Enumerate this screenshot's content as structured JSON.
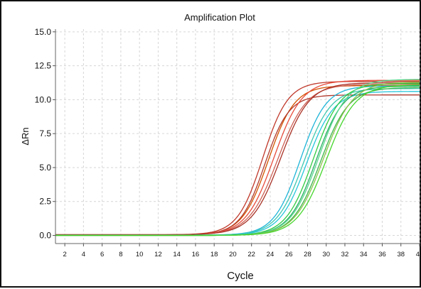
{
  "chart_data": {
    "type": "line",
    "title": "Amplification Plot",
    "xlabel": "Cycle",
    "ylabel": "ΔRn",
    "xlim": [
      1,
      40
    ],
    "ylim": [
      -0.6,
      15.2
    ],
    "x_ticks": [
      2,
      4,
      6,
      8,
      10,
      12,
      14,
      16,
      18,
      20,
      22,
      24,
      26,
      28,
      30,
      32,
      34,
      36,
      38,
      40
    ],
    "x_tick_labels": [
      "2",
      "4",
      "6",
      "8",
      "10",
      "12",
      "14",
      "16",
      "18",
      "20",
      "22",
      "24",
      "26",
      "28",
      "30",
      "32",
      "34",
      "36",
      "38",
      "40"
    ],
    "y_ticks": [
      0.0,
      2.5,
      5.0,
      7.5,
      10.0,
      12.5,
      15.0
    ],
    "y_tick_labels": [
      "0.0",
      "2.5",
      "5.0",
      "7.5",
      "10.0",
      "12.5",
      "15.0"
    ],
    "grid": true,
    "legend": "none",
    "curve_model": "sigmoid: base + plateau / (1 + exp(-(cycle - midpoint) / slope))",
    "series": [
      {
        "group": "red",
        "color": "#c0392b",
        "base": 0.05,
        "plateau": 11.3,
        "midpoint": 23.2,
        "slope": 1.35
      },
      {
        "group": "red",
        "color": "#d35400",
        "base": 0.04,
        "plateau": 11.0,
        "midpoint": 23.8,
        "slope": 1.4
      },
      {
        "group": "red",
        "color": "#b03a2e",
        "base": 0.05,
        "plateau": 10.3,
        "midpoint": 23.4,
        "slope": 1.3
      },
      {
        "group": "red",
        "color": "#e74c3c",
        "base": 0.03,
        "plateau": 11.4,
        "midpoint": 24.4,
        "slope": 1.5
      },
      {
        "group": "red",
        "color": "#cd6155",
        "base": 0.04,
        "plateau": 11.1,
        "midpoint": 24.8,
        "slope": 1.55
      },
      {
        "group": "red",
        "color": "#a93226",
        "base": 0.05,
        "plateau": 11.2,
        "midpoint": 25.1,
        "slope": 1.55
      },
      {
        "group": "cyan",
        "color": "#1fb5d8",
        "base": 0.02,
        "plateau": 11.0,
        "midpoint": 27.2,
        "slope": 1.4
      },
      {
        "group": "cyan",
        "color": "#3fc7b0",
        "base": 0.02,
        "plateau": 10.8,
        "midpoint": 27.6,
        "slope": 1.45
      },
      {
        "group": "cyan",
        "color": "#26c6da",
        "base": 0.01,
        "plateau": 10.6,
        "midpoint": 27.9,
        "slope": 1.45
      },
      {
        "group": "green",
        "color": "#2ecc40",
        "base": 0.0,
        "plateau": 11.2,
        "midpoint": 28.6,
        "slope": 1.45
      },
      {
        "group": "green",
        "color": "#27ae60",
        "base": 0.0,
        "plateau": 11.0,
        "midpoint": 28.9,
        "slope": 1.45
      },
      {
        "group": "green",
        "color": "#58d68d",
        "base": 0.0,
        "plateau": 11.5,
        "midpoint": 29.2,
        "slope": 1.5
      },
      {
        "group": "green",
        "color": "#3bb54a",
        "base": 0.0,
        "plateau": 10.9,
        "midpoint": 29.4,
        "slope": 1.5
      },
      {
        "group": "green",
        "color": "#8bc34a",
        "base": 0.0,
        "plateau": 11.3,
        "midpoint": 29.7,
        "slope": 1.55
      },
      {
        "group": "green",
        "color": "#44d62c",
        "base": 0.0,
        "plateau": 11.1,
        "midpoint": 30.0,
        "slope": 1.55
      }
    ]
  }
}
